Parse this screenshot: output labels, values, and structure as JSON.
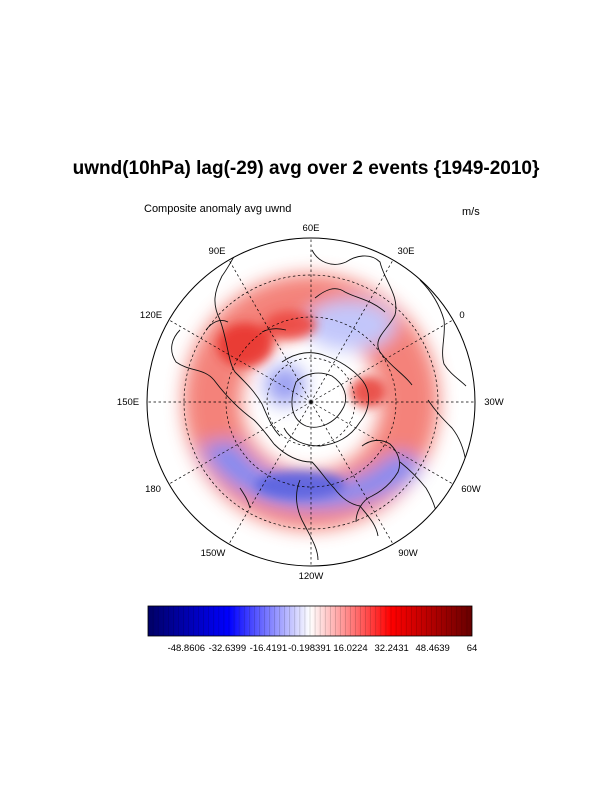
{
  "title": "uwnd(10hPa) lag(-29) avg over 2 events {1949-2010}",
  "subtitle_left": "Composite anomaly avg uwnd",
  "subtitle_right": "m/s",
  "longitude_labels": {
    "lon_60e": "60E",
    "lon_90e": "90E",
    "lon_30e": "30E",
    "lon_120e": "120E",
    "lon_0": "0",
    "lon_150e": "150E",
    "lon_30w": "30W",
    "lon_180": "180",
    "lon_60w": "60W",
    "lon_150w": "150W",
    "lon_90w": "90W",
    "lon_120w": "120W"
  },
  "colorbar": {
    "min": -64,
    "max": 64,
    "low_color": "#000066",
    "mid_color": "#ffffff",
    "high_color": "#660000",
    "tick_labels": [
      "-48.8606",
      "-32.6399",
      "-16.4191",
      "-0.198391",
      "16.0224",
      "32.2431",
      "48.4639",
      "64"
    ]
  },
  "colors": {
    "positive_anomaly": "#e8352e",
    "negative_anomaly": "#5a63e0"
  }
}
